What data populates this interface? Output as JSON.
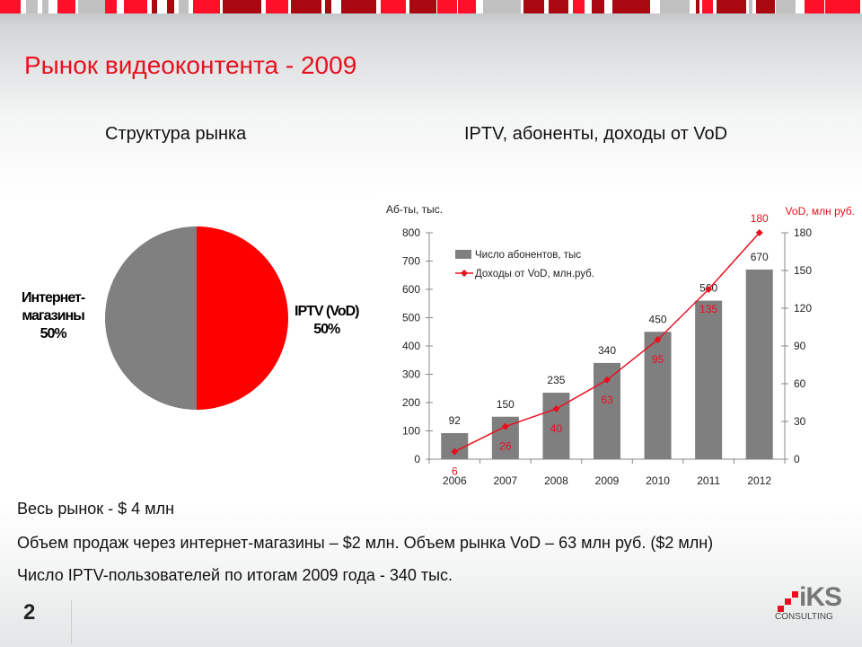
{
  "title": "Рынок видеоконтента - 2009",
  "pie": {
    "title": "Структура рынка",
    "slices": [
      {
        "label": "IPTV (VoD)",
        "value_label": "50%",
        "value": 50,
        "color": "#ff0000"
      },
      {
        "label": "Интернет-магазины",
        "label_lines": [
          "Интернет-",
          "магазины"
        ],
        "value_label": "50%",
        "value": 50,
        "color": "#808080"
      }
    ]
  },
  "chart_title": "IPTV, абоненты, доходы от VoD",
  "chart_data": {
    "type": "bar",
    "categories": [
      "2006",
      "2007",
      "2008",
      "2009",
      "2010",
      "2011",
      "2012"
    ],
    "series": [
      {
        "name": "Число абонентов, тыс",
        "type": "bar",
        "axis": "left",
        "color": "#7f7f7f",
        "values": [
          92,
          150,
          235,
          340,
          450,
          560,
          670
        ]
      },
      {
        "name": "Доходы от VoD, млн.руб.",
        "type": "line",
        "axis": "right",
        "color": "#e8101e",
        "values": [
          6,
          26,
          40,
          63,
          95,
          135,
          180
        ]
      }
    ],
    "ylabel": "Аб-ты, тыс.",
    "ylim": [
      0,
      800
    ],
    "yticks": [
      "0",
      "100",
      "200",
      "300",
      "400",
      "500",
      "600",
      "700",
      "800"
    ],
    "y2label": "VoD, млн руб.",
    "y2lim": [
      0,
      180
    ],
    "y2ticks": [
      "0",
      "30",
      "60",
      "90",
      "120",
      "150",
      "180"
    ],
    "legend": "top-left"
  },
  "notes": [
    "Весь рынок - $ 4 млн",
    "Объем продаж через интернет-магазины – $2 млн. Объем рынка VoD – 63 млн руб. ($2 млн)",
    "Число IPTV-пользователей по итогам 2009 года - 340 тыс."
  ],
  "page_number": "2",
  "logo": {
    "name": "iKS",
    "sub": "CONSULTING"
  }
}
